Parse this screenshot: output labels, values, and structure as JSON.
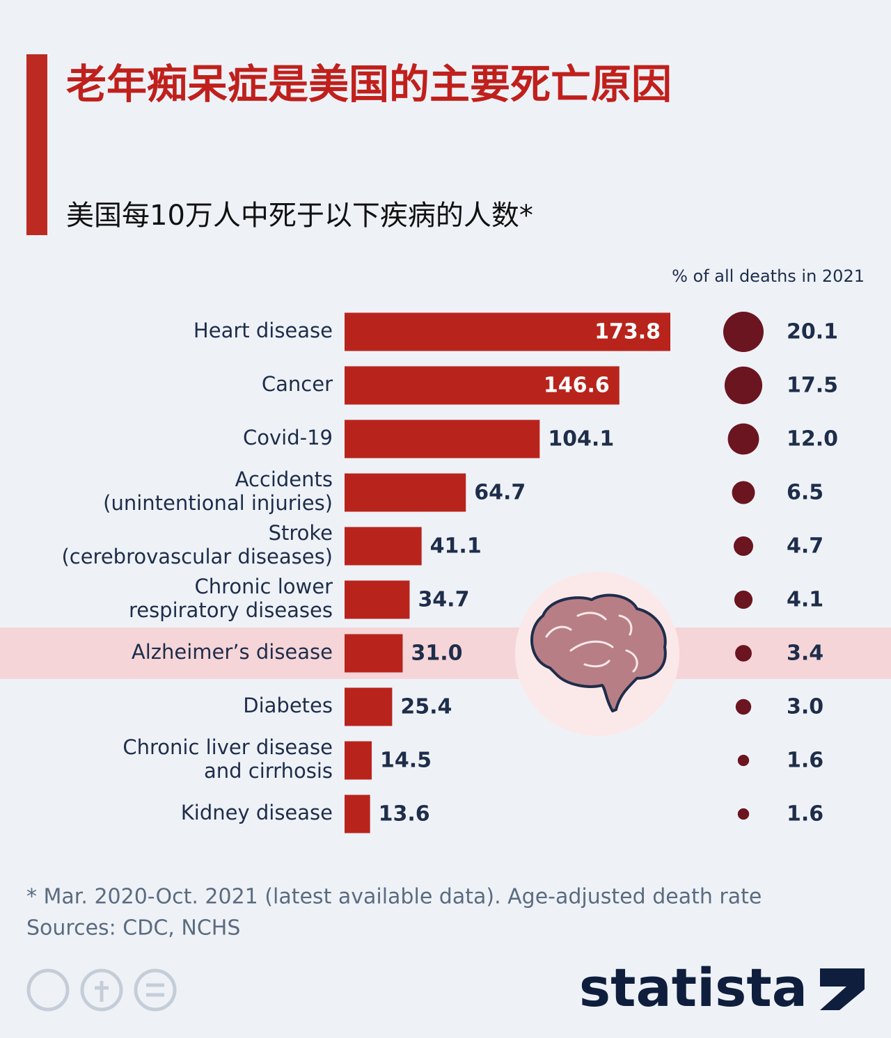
{
  "chart_data": {
    "type": "bar",
    "orientation": "horizontal",
    "title": "老年痴呆症是美国的主要死亡原因",
    "subtitle": "美国每10万人中死于以下疾病的人数*",
    "categories": [
      [
        "Heart disease"
      ],
      [
        "Cancer"
      ],
      [
        "Covid-19"
      ],
      [
        "Accidents",
        "(unintentional injuries)"
      ],
      [
        "Stroke",
        "(cerebrovascular diseases)"
      ],
      [
        "Chronic lower",
        "respiratory diseases"
      ],
      [
        "Alzheimer’s disease"
      ],
      [
        "Diabetes"
      ],
      [
        "Chronic liver disease",
        "and cirrhosis"
      ],
      [
        "Kidney disease"
      ]
    ],
    "values": [
      173.8,
      146.6,
      104.1,
      64.7,
      41.1,
      34.7,
      31.0,
      25.4,
      14.5,
      13.6
    ],
    "value_labels": [
      "173.8",
      "146.6",
      "104.1",
      "64.7",
      "41.1",
      "34.7",
      "31.0",
      "25.4",
      "14.5",
      "13.6"
    ],
    "color": "#b8241c",
    "bubble_title": "% of all deaths in 2021",
    "bubble_values": [
      20.1,
      17.5,
      12.0,
      6.5,
      4.7,
      4.1,
      3.4,
      3.0,
      1.6,
      1.6
    ],
    "bubble_labels": [
      "20.1",
      "17.5",
      "12.0",
      "6.5",
      "4.7",
      "4.1",
      "3.4",
      "3.0",
      "1.6",
      "1.6"
    ],
    "bubble_color": "#6b1520",
    "highlight_index": 6,
    "footnote": "* Mar. 2020-Oct. 2021 (latest available data). Age-adjusted death rate",
    "source": "Sources: CDC, NCHS",
    "brand": "statista"
  }
}
